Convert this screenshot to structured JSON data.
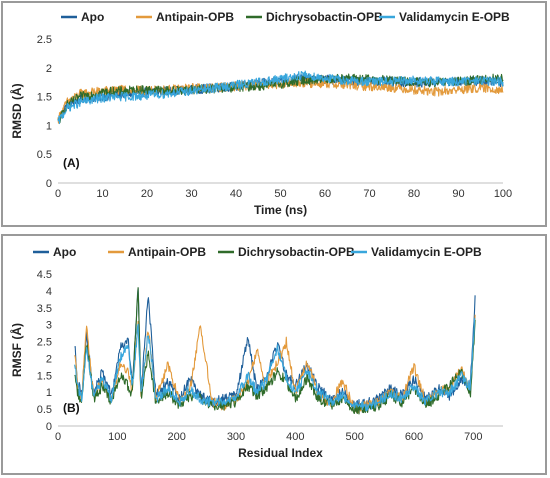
{
  "chart_data": [
    {
      "type": "line",
      "panel_label": "(A)",
      "xlabel": "Time (ns)",
      "ylabel": "RMSD (Å)",
      "xlim": [
        0,
        100
      ],
      "ylim": [
        0,
        2.5
      ],
      "xticks": [
        "0",
        "10",
        "20",
        "30",
        "40",
        "50",
        "60",
        "70",
        "80",
        "90",
        "100"
      ],
      "yticks": [
        "0",
        "0.5",
        "1",
        "1.5",
        "2",
        "2.5"
      ],
      "legend_position": "top",
      "series": [
        {
          "name": "Apo",
          "color": "#1f5f9a",
          "x": [
            0,
            2,
            5,
            10,
            15,
            20,
            25,
            30,
            35,
            40,
            45,
            50,
            55,
            60,
            65,
            70,
            75,
            80,
            85,
            90,
            95,
            100
          ],
          "y": [
            1.1,
            1.35,
            1.45,
            1.5,
            1.55,
            1.58,
            1.6,
            1.62,
            1.65,
            1.68,
            1.72,
            1.78,
            1.82,
            1.8,
            1.78,
            1.77,
            1.76,
            1.74,
            1.75,
            1.76,
            1.77,
            1.75
          ]
        },
        {
          "name": "Antipain-OPB",
          "color": "#e39a3c",
          "x": [
            0,
            2,
            5,
            10,
            15,
            20,
            25,
            30,
            35,
            40,
            45,
            50,
            55,
            60,
            65,
            70,
            75,
            80,
            85,
            90,
            95,
            100
          ],
          "y": [
            1.1,
            1.4,
            1.55,
            1.6,
            1.62,
            1.6,
            1.62,
            1.65,
            1.66,
            1.68,
            1.7,
            1.72,
            1.74,
            1.73,
            1.7,
            1.68,
            1.66,
            1.62,
            1.58,
            1.62,
            1.65,
            1.62
          ]
        },
        {
          "name": "Dichrysobactin-OPB",
          "color": "#2f6b2a",
          "x": [
            0,
            2,
            5,
            10,
            15,
            20,
            25,
            30,
            35,
            40,
            45,
            50,
            55,
            60,
            65,
            70,
            75,
            80,
            85,
            90,
            95,
            100
          ],
          "y": [
            1.05,
            1.35,
            1.5,
            1.58,
            1.6,
            1.62,
            1.6,
            1.62,
            1.64,
            1.66,
            1.68,
            1.72,
            1.78,
            1.8,
            1.82,
            1.8,
            1.78,
            1.76,
            1.74,
            1.76,
            1.8,
            1.82
          ]
        },
        {
          "name": "Validamycin E-OPB",
          "color": "#38a6dc",
          "x": [
            0,
            2,
            5,
            10,
            15,
            20,
            25,
            30,
            35,
            40,
            45,
            50,
            55,
            60,
            65,
            70,
            75,
            80,
            85,
            90,
            95,
            100
          ],
          "y": [
            1.05,
            1.3,
            1.4,
            1.48,
            1.5,
            1.52,
            1.56,
            1.6,
            1.65,
            1.7,
            1.75,
            1.8,
            1.88,
            1.82,
            1.78,
            1.76,
            1.76,
            1.78,
            1.77,
            1.76,
            1.78,
            1.76
          ]
        }
      ]
    },
    {
      "type": "line",
      "panel_label": "(B)",
      "xlabel": "Residual Index",
      "ylabel": "RMSF (Å)",
      "xlim": [
        0,
        750
      ],
      "ylim": [
        0,
        4.5
      ],
      "xticks": [
        "0",
        "100",
        "200",
        "300",
        "400",
        "500",
        "600",
        "700"
      ],
      "yticks": [
        "0",
        "0.5",
        "1",
        "1.5",
        "2",
        "2.5",
        "3",
        "3.5",
        "4",
        "4.5"
      ],
      "legend_position": "top",
      "series": [
        {
          "name": "Apo",
          "color": "#1f5f9a",
          "x": [
            28,
            33,
            40,
            48,
            60,
            75,
            90,
            105,
            118,
            125,
            135,
            140,
            152,
            165,
            185,
            205,
            222,
            240,
            260,
            280,
            300,
            320,
            335,
            350,
            370,
            385,
            400,
            420,
            440,
            460,
            480,
            500,
            520,
            540,
            560,
            580,
            600,
            620,
            640,
            660,
            680,
            695,
            703
          ],
          "y": [
            2.45,
            1.3,
            0.9,
            2.7,
            1.0,
            1.6,
            0.9,
            2.3,
            2.55,
            1.2,
            4.1,
            1.0,
            3.85,
            0.9,
            1.3,
            0.8,
            1.4,
            0.9,
            0.7,
            0.8,
            0.9,
            2.6,
            1.1,
            1.4,
            2.4,
            1.5,
            1.2,
            1.8,
            1.1,
            0.8,
            1.0,
            0.6,
            0.7,
            0.8,
            1.1,
            0.9,
            1.4,
            0.8,
            1.1,
            0.9,
            1.4,
            1.2,
            3.82
          ]
        },
        {
          "name": "Antipain-OPB",
          "color": "#e39a3c",
          "x": [
            28,
            33,
            40,
            48,
            60,
            75,
            90,
            105,
            118,
            125,
            135,
            140,
            152,
            165,
            185,
            205,
            222,
            240,
            260,
            280,
            300,
            320,
            335,
            350,
            370,
            385,
            400,
            420,
            440,
            460,
            480,
            500,
            520,
            540,
            560,
            580,
            600,
            620,
            640,
            660,
            680,
            695,
            703
          ],
          "y": [
            2.2,
            1.1,
            0.8,
            3.0,
            0.9,
            1.3,
            0.8,
            1.8,
            1.6,
            1.0,
            3.1,
            0.9,
            2.9,
            0.8,
            1.85,
            0.7,
            1.0,
            3.0,
            0.7,
            0.6,
            0.8,
            1.3,
            2.25,
            1.2,
            1.9,
            2.5,
            1.0,
            1.9,
            0.9,
            0.7,
            1.3,
            0.5,
            0.6,
            0.7,
            1.0,
            0.8,
            1.75,
            0.7,
            1.0,
            1.1,
            1.7,
            1.0,
            3.2
          ]
        },
        {
          "name": "Dichrysobactin-OPB",
          "color": "#2f6b2a",
          "x": [
            28,
            33,
            40,
            48,
            60,
            75,
            90,
            105,
            118,
            125,
            135,
            140,
            152,
            165,
            185,
            205,
            222,
            240,
            260,
            280,
            300,
            320,
            335,
            350,
            370,
            385,
            400,
            420,
            440,
            460,
            480,
            500,
            520,
            540,
            560,
            580,
            600,
            620,
            640,
            660,
            680,
            695,
            703
          ],
          "y": [
            1.6,
            1.0,
            0.7,
            2.5,
            0.8,
            1.2,
            0.7,
            1.5,
            1.2,
            0.9,
            4.1,
            0.8,
            2.2,
            0.7,
            1.0,
            0.6,
            0.9,
            0.8,
            0.6,
            0.6,
            0.7,
            1.2,
            0.9,
            1.1,
            1.6,
            1.3,
            0.8,
            1.4,
            0.8,
            0.6,
            0.8,
            0.5,
            0.5,
            0.6,
            0.9,
            0.7,
            1.1,
            0.6,
            0.9,
            1.2,
            1.6,
            0.9,
            3.0
          ]
        },
        {
          "name": "Validamycin E-OPB",
          "color": "#38a6dc",
          "x": [
            28,
            33,
            40,
            48,
            60,
            75,
            90,
            105,
            118,
            125,
            135,
            140,
            152,
            165,
            185,
            205,
            222,
            240,
            260,
            280,
            300,
            320,
            335,
            350,
            370,
            385,
            400,
            420,
            440,
            460,
            480,
            500,
            520,
            540,
            560,
            580,
            600,
            620,
            640,
            660,
            680,
            695,
            703
          ],
          "y": [
            1.9,
            1.2,
            0.8,
            2.3,
            0.9,
            1.4,
            0.8,
            2.0,
            2.5,
            1.1,
            3.0,
            0.9,
            2.8,
            0.8,
            1.1,
            0.7,
            1.1,
            0.8,
            0.7,
            0.7,
            0.8,
            1.5,
            1.0,
            1.3,
            2.3,
            1.4,
            1.0,
            1.6,
            1.0,
            0.7,
            0.9,
            0.6,
            0.6,
            0.7,
            1.0,
            0.8,
            1.2,
            0.7,
            1.0,
            1.0,
            1.5,
            1.1,
            3.3
          ]
        }
      ]
    }
  ]
}
